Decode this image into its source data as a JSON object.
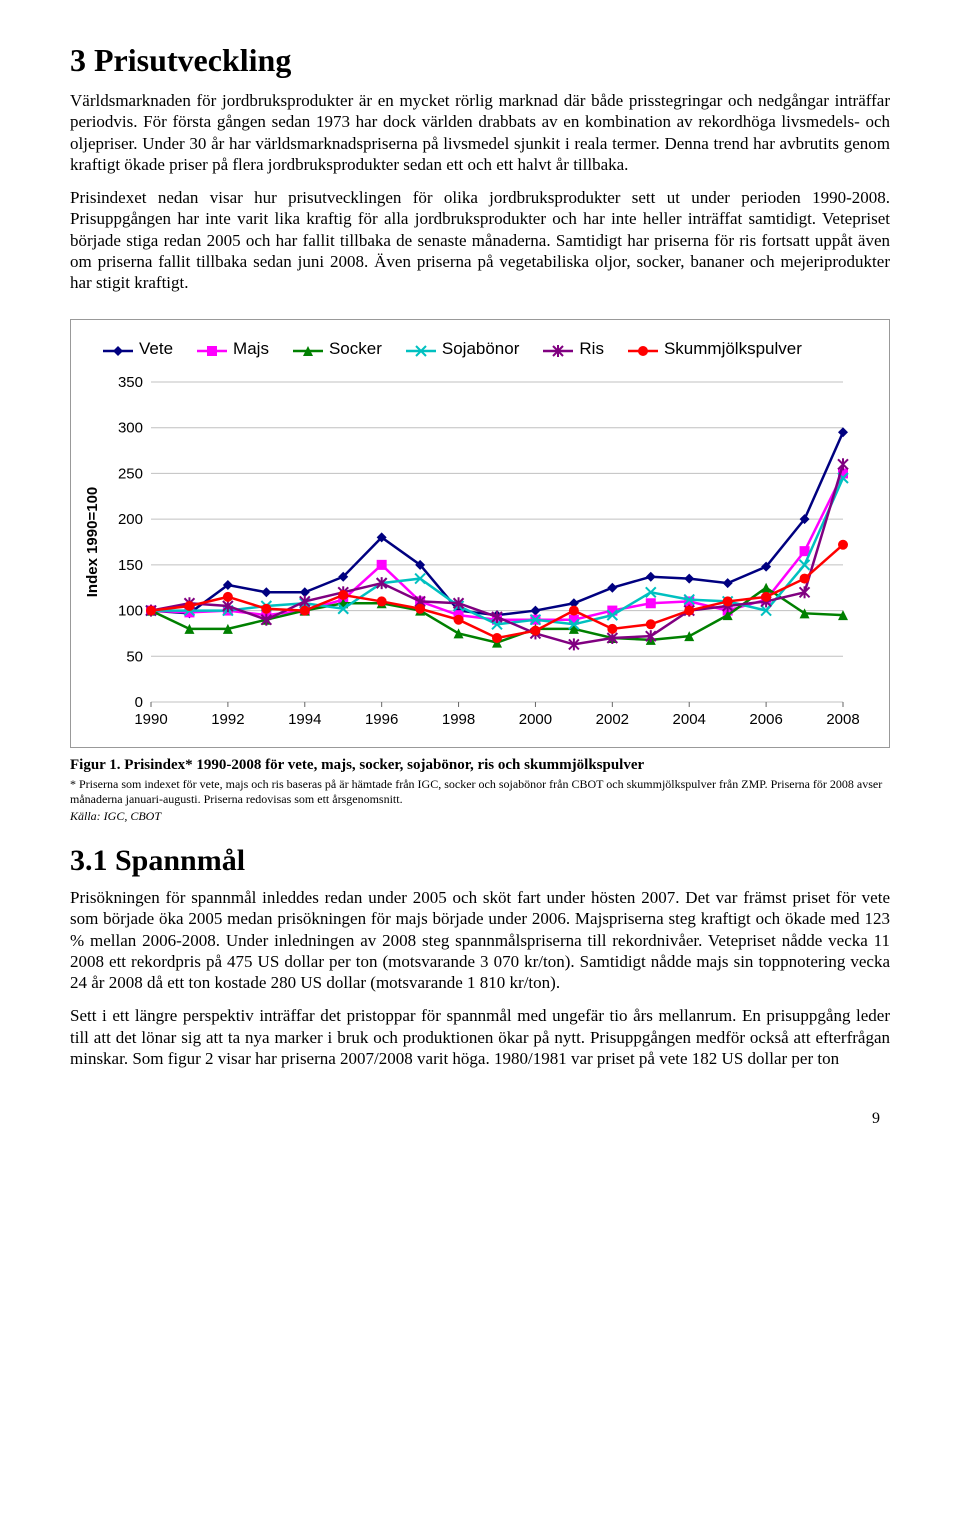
{
  "heading1": "3 Prisutveckling",
  "para1": "Världsmarknaden för jordbruksprodukter är en mycket rörlig marknad där både prisstegringar och nedgångar inträffar periodvis. För första gången sedan 1973 har dock världen drabbats av en kombination av rekordhöga livsmedels- och oljepriser. Under 30 år har världsmarknadspriserna på livsmedel sjunkit i reala termer. Denna trend har avbrutits genom kraftigt ökade priser på flera jordbruksprodukter sedan ett och ett halvt år tillbaka.",
  "para2": "Prisindexet nedan visar hur prisutvecklingen för olika jordbruksprodukter sett ut under perioden 1990-2008. Prisuppgången har inte varit lika kraftig för alla jordbruksprodukter och har inte heller inträffat samtidigt. Vetepriset började stiga redan 2005 och har fallit tillbaka de senaste månaderna. Samtidigt har priserna för ris fortsatt uppåt även om priserna fallit tillbaka sedan juni 2008. Även priserna på vegetabiliska oljor, socker, bananer och mejeriprodukter har stigit kraftigt.",
  "chart": {
    "type": "line",
    "ylabel": "Index 1990=100",
    "ylim": [
      0,
      350
    ],
    "ytick_step": 50,
    "x_ticks": [
      "1990",
      "1992",
      "1994",
      "1996",
      "1998",
      "2000",
      "2002",
      "2004",
      "2006",
      "2008"
    ],
    "years": [
      1990,
      1991,
      1992,
      1993,
      1994,
      1995,
      1996,
      1997,
      1998,
      1999,
      2000,
      2001,
      2002,
      2003,
      2004,
      2005,
      2006,
      2007,
      2008
    ],
    "background_color": "#ffffff",
    "grid_color": "#c0c0c0",
    "series": [
      {
        "name": "Vete",
        "color": "#000080",
        "marker": "diamond",
        "values": [
          100,
          97,
          128,
          120,
          120,
          137,
          180,
          150,
          100,
          95,
          100,
          108,
          125,
          137,
          135,
          130,
          148,
          200,
          295
        ]
      },
      {
        "name": "Majs",
        "color": "#ff00ff",
        "marker": "square",
        "values": [
          100,
          98,
          100,
          95,
          100,
          112,
          150,
          110,
          95,
          90,
          90,
          90,
          100,
          108,
          110,
          100,
          112,
          165,
          250
        ]
      },
      {
        "name": "Socker",
        "color": "#008000",
        "marker": "triangle",
        "values": [
          100,
          80,
          80,
          90,
          100,
          108,
          108,
          100,
          75,
          65,
          80,
          80,
          70,
          68,
          72,
          95,
          125,
          97,
          95
        ]
      },
      {
        "name": "Sojabönor",
        "color": "#00c0c0",
        "marker": "x",
        "values": [
          100,
          100,
          100,
          105,
          108,
          102,
          130,
          135,
          105,
          85,
          90,
          85,
          95,
          120,
          112,
          110,
          100,
          150,
          245
        ]
      },
      {
        "name": "Ris",
        "color": "#800080",
        "marker": "star",
        "values": [
          100,
          108,
          105,
          90,
          110,
          120,
          130,
          110,
          108,
          93,
          75,
          63,
          70,
          72,
          100,
          105,
          110,
          120,
          260
        ]
      },
      {
        "name": "Skummjölkspulver",
        "color": "#ff0000",
        "marker": "circle",
        "values": [
          100,
          105,
          115,
          102,
          100,
          117,
          110,
          102,
          90,
          70,
          78,
          100,
          80,
          85,
          100,
          110,
          115,
          135,
          172
        ]
      }
    ]
  },
  "legend": {
    "items": [
      {
        "label": "Vete",
        "color": "#000080",
        "marker": "diamond"
      },
      {
        "label": "Majs",
        "color": "#ff00ff",
        "marker": "square"
      },
      {
        "label": "Socker",
        "color": "#008000",
        "marker": "triangle"
      },
      {
        "label": "Sojabönor",
        "color": "#00c0c0",
        "marker": "x"
      },
      {
        "label": "Ris",
        "color": "#800080",
        "marker": "star"
      },
      {
        "label": "Skummjölkspulver",
        "color": "#ff0000",
        "marker": "circle"
      }
    ]
  },
  "figure_caption": "Figur 1. Prisindex* 1990-2008 för vete, majs, socker, sojabönor, ris och skummjölkspulver",
  "figure_note": "* Priserna som indexet för vete, majs och ris baseras på är hämtade från IGC, socker och sojabönor från CBOT och skummjölkspulver från ZMP. Priserna för 2008 avser månaderna januari-augusti. Priserna redovisas som ett årsgenomsnitt.",
  "figure_source": "Källa: IGC, CBOT",
  "heading2": "3.1 Spannmål",
  "para3": "Prisökningen för spannmål inleddes redan under 2005 och sköt fart under hösten 2007. Det var främst priset för vete som började öka 2005 medan prisökningen för majs började under 2006. Majspriserna steg kraftigt och ökade med 123 % mellan 2006-2008. Under inledningen av 2008 steg spannmålspriserna till rekordnivåer. Vetepriset nådde vecka 11 2008 ett rekordpris på 475 US dollar per ton (motsvarande 3 070 kr/ton). Samtidigt nådde majs sin toppnotering vecka 24 år 2008 då ett ton kostade 280 US dollar (motsvarande 1 810 kr/ton).",
  "para4": "Sett i ett längre perspektiv inträffar det pristoppar för spannmål med ungefär tio års mellanrum. En prisuppgång leder till att det lönar sig att ta nya marker i bruk och produktionen ökar på nytt. Prisuppgången medför också att efterfrågan minskar. Som figur 2 visar har priserna 2007/2008 varit höga. 1980/1981 var priset på vete 182 US dollar per ton",
  "page_number": "9"
}
